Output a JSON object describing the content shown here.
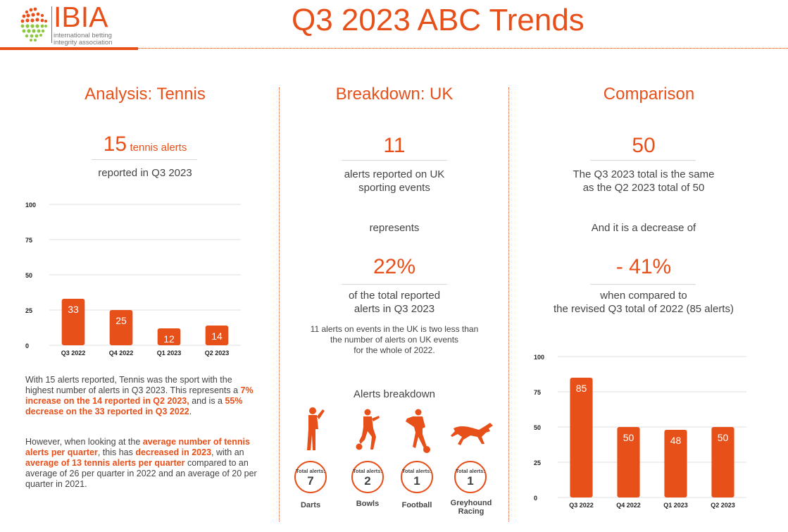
{
  "header": {
    "logo_name": "IBIA",
    "logo_tagline_1": "international betting",
    "logo_tagline_2": "integrity association",
    "title": "Q3 2023 ABC Trends",
    "accent_color": "#e8501a"
  },
  "left": {
    "section_title": "Analysis: Tennis",
    "headline_number": "15",
    "headline_suffix": "tennis alerts",
    "headline_sub": "reported in Q3 2023",
    "para1": {
      "t1": "With 15 alerts reported, Tennis was the sport with the highest number of alerts in Q3 2023. This represents a ",
      "b1": "7% increase on the 14 reported in Q2 2023,",
      "t2": " and is a ",
      "b2": "55% decrease on the 33 reported in Q3 2022",
      "t3": "."
    },
    "para2": {
      "t1": "However, when looking at the ",
      "b1": "average number of tennis alerts per quarter",
      "t2": ", this has ",
      "b2": "decreased in 2023",
      "t3": ", with an ",
      "b3": "average of 13 tennis alerts per quarter",
      "t4": " compared to an average of 26 per quarter in 2022 and an average of 20 per quarter in 2021."
    }
  },
  "middle": {
    "section_title": "Breakdown: UK",
    "headline_number": "11",
    "headline_sub_1": "alerts reported on UK",
    "headline_sub_2": "sporting events",
    "represents": "represents",
    "percent": "22%",
    "percent_sub_1": "of the total reported",
    "percent_sub_2": "alerts in Q3 2023",
    "note_1": "11 alerts on events in the UK is two less than",
    "note_2": "the number of alerts on UK events",
    "note_3": "for the whole of 2022.",
    "breakdown_title": "Alerts breakdown",
    "total_label": "Total alerts:",
    "sports": [
      {
        "name": "Darts",
        "name2": "",
        "total": "7",
        "icon": "darts-player-icon"
      },
      {
        "name": "Bowls",
        "name2": "",
        "total": "2",
        "icon": "bowls-player-icon"
      },
      {
        "name": "Football",
        "name2": "",
        "total": "1",
        "icon": "football-player-icon"
      },
      {
        "name": "Greyhound",
        "name2": "Racing",
        "total": "1",
        "icon": "greyhound-icon"
      }
    ]
  },
  "right": {
    "section_title": "Comparison",
    "headline_number": "50",
    "headline_sub_1": "The Q3 2023 total is the same",
    "headline_sub_2": "as the Q2 2023 total of 50",
    "decrease_text": "And it is a decrease of",
    "percent": "- 41%",
    "percent_sub_1": "when compared to",
    "percent_sub_2": "the revised Q3 total of 2022 (85 alerts)"
  },
  "chart_data": [
    {
      "type": "bar",
      "categories": [
        "Q3 2022",
        "Q4 2022",
        "Q1 2023",
        "Q2 2023"
      ],
      "values": [
        33,
        25,
        12,
        14
      ],
      "yticks": [
        0,
        25,
        50,
        75,
        100
      ],
      "ylim": [
        0,
        100
      ],
      "grid": true,
      "bar_color": "#e8501a"
    },
    {
      "type": "bar",
      "categories": [
        "Q3 2022",
        "Q4 2022",
        "Q1 2023",
        "Q2 2023"
      ],
      "values": [
        85,
        50,
        48,
        50
      ],
      "yticks": [
        0,
        25,
        50,
        75,
        100
      ],
      "ylim": [
        0,
        100
      ],
      "grid": true,
      "bar_color": "#e8501a"
    }
  ]
}
